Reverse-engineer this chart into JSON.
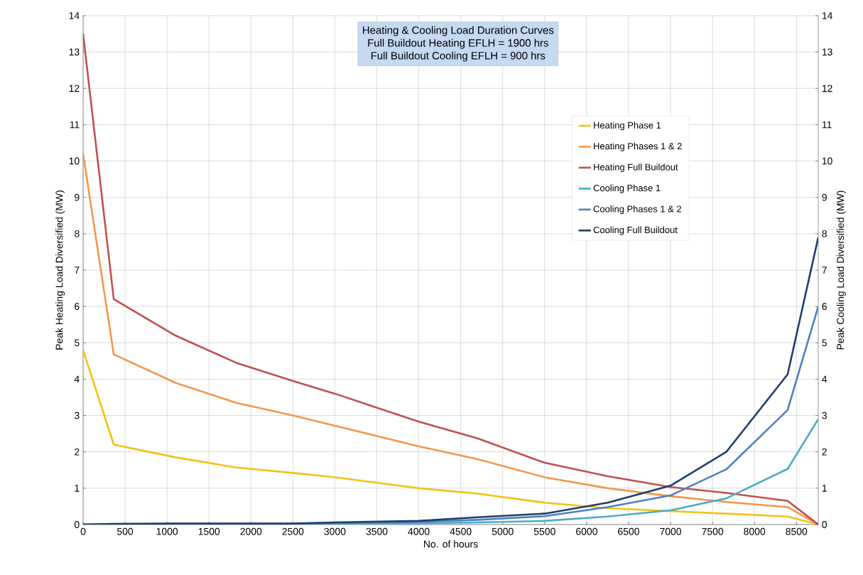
{
  "chart_data": {
    "type": "line",
    "title": "Heating & Cooling Load Duration Curves",
    "annotations": [
      "Full Buildout Heating EFLH = 1900 hrs",
      "Full Buildout Cooling EFLH = 900 hrs"
    ],
    "xlabel": "No. of hours",
    "ylabel": "Peak Heating Load Diversified (MW)",
    "y2label": "Peak Cooling Load Diversified (MW)",
    "x": [
      0,
      365,
      1100,
      1825,
      2500,
      3000,
      4000,
      4700,
      5500,
      6250,
      7000,
      7665,
      8395,
      8760
    ],
    "xlim": [
      0,
      8760
    ],
    "xticks": [
      0,
      500,
      1000,
      1500,
      2000,
      2500,
      3000,
      3500,
      4000,
      4500,
      5000,
      5500,
      6000,
      6500,
      7000,
      7500,
      8000,
      8500
    ],
    "ylim": [
      0,
      14
    ],
    "yticks": [
      0,
      1,
      2,
      3,
      4,
      5,
      6,
      7,
      8,
      9,
      10,
      11,
      12,
      13,
      14
    ],
    "y2lim": [
      0,
      14
    ],
    "y2ticks": [
      0,
      1,
      2,
      3,
      4,
      5,
      6,
      7,
      8,
      9,
      10,
      11,
      12,
      13,
      14
    ],
    "grid": true,
    "legend": "top right",
    "marker": "none",
    "line_style": "solid",
    "series": [
      {
        "name": "Heating Phase 1",
        "color": "#f2c314",
        "values": [
          4.8,
          2.2,
          1.85,
          1.57,
          1.42,
          1.3,
          1.0,
          0.85,
          0.6,
          0.45,
          0.37,
          0.3,
          0.22,
          0
        ]
      },
      {
        "name": "Heating Phases 1 & 2",
        "color": "#f3974b",
        "values": [
          10.2,
          4.68,
          3.9,
          3.35,
          3.0,
          2.72,
          2.15,
          1.8,
          1.3,
          1.0,
          0.78,
          0.62,
          0.48,
          0
        ]
      },
      {
        "name": "Heating Full Buildout",
        "color": "#c0504d",
        "values": [
          13.5,
          6.2,
          5.2,
          4.45,
          3.95,
          3.6,
          2.83,
          2.37,
          1.7,
          1.33,
          1.03,
          0.87,
          0.65,
          0
        ]
      },
      {
        "name": "Cooling Phase 1",
        "color": "#4bacc6",
        "axis": "y2",
        "values": [
          0,
          null,
          0.01,
          0.01,
          0.01,
          0.02,
          0.03,
          0.06,
          0.1,
          0.22,
          0.39,
          0.72,
          1.53,
          2.9
        ]
      },
      {
        "name": "Cooling Phases 1 & 2",
        "color": "#4f81bd",
        "axis": "y2",
        "values": [
          0,
          0.01,
          0.02,
          0.02,
          0.02,
          0.04,
          0.07,
          0.13,
          0.23,
          0.48,
          0.8,
          1.52,
          3.15,
          6.0
        ]
      },
      {
        "name": "Cooling Full Buildout",
        "color": "#1f3d6e",
        "axis": "y2",
        "values": [
          0,
          0.02,
          0.03,
          0.03,
          0.03,
          0.06,
          0.1,
          0.2,
          0.3,
          0.6,
          1.07,
          2.0,
          4.13,
          7.9
        ]
      }
    ]
  }
}
